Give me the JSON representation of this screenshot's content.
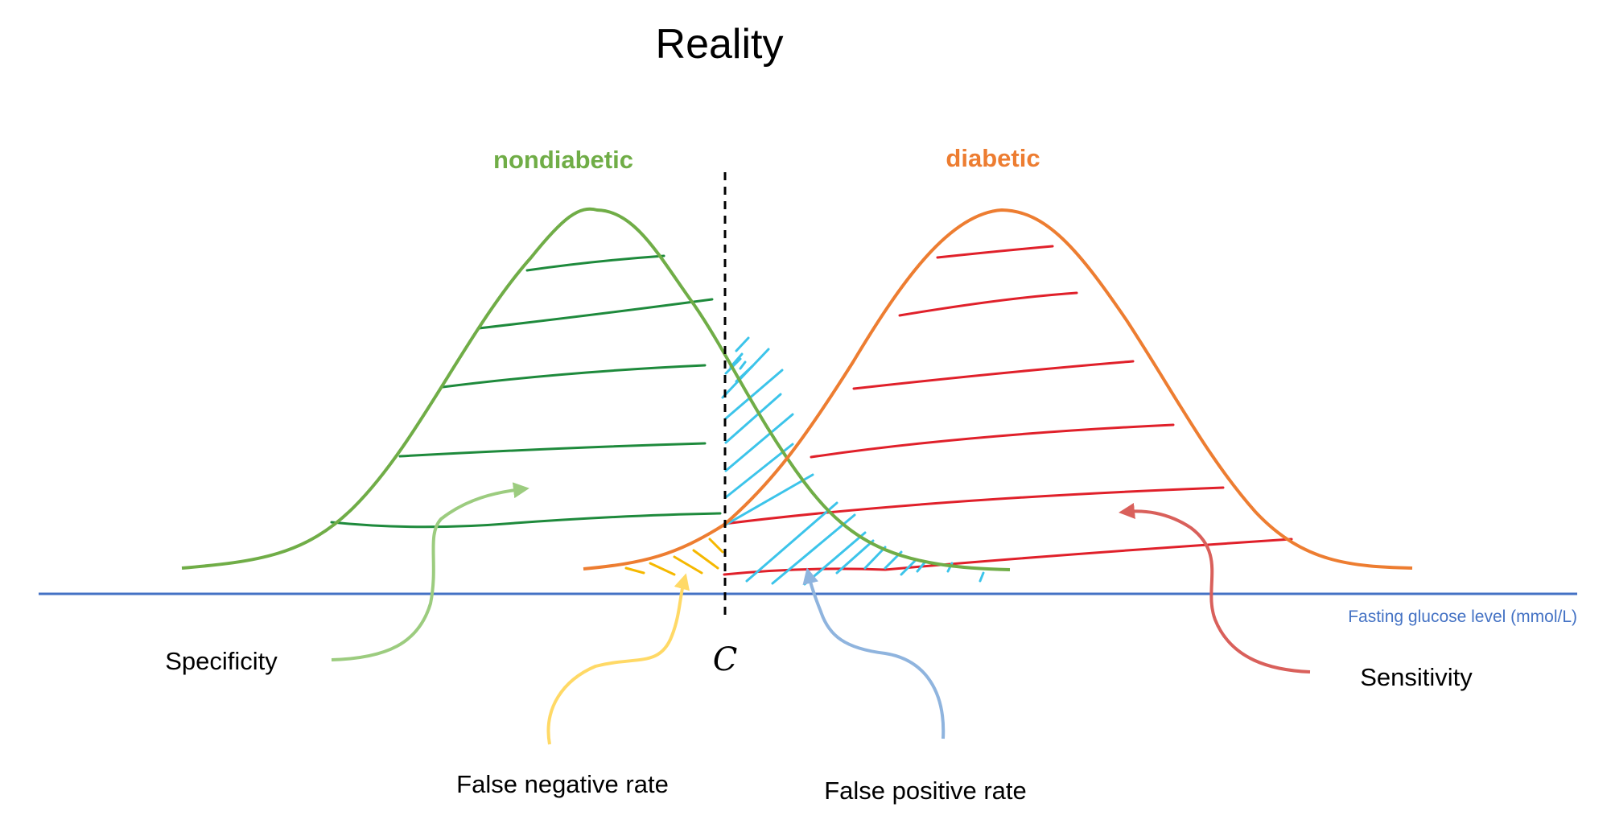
{
  "title": "Reality",
  "axis_label": "Fasting glucose level (mmol/L)",
  "threshold_label": "C",
  "curves": {
    "nondiabetic": {
      "label": "nondiabetic",
      "color": "#70ad47"
    },
    "diabetic": {
      "label": "diabetic",
      "color": "#ed7d31"
    }
  },
  "annotations": {
    "specificity": "Specificity",
    "sensitivity": "Sensitivity",
    "false_negative_rate": "False negative rate",
    "false_positive_rate": "False positive rate"
  },
  "colors": {
    "axis": "#4472c4",
    "specificity_hatch": "#1e8a3c",
    "sensitivity_hatch": "#e0202a",
    "false_negative_hatch": "#f5b800",
    "false_positive_hatch": "#3cc4ea",
    "specificity_arrow": "#9ccc7f",
    "sensitivity_arrow": "#d9605b",
    "false_negative_arrow": "#ffd966",
    "false_positive_arrow": "#8fb4de",
    "threshold": "#000000"
  }
}
